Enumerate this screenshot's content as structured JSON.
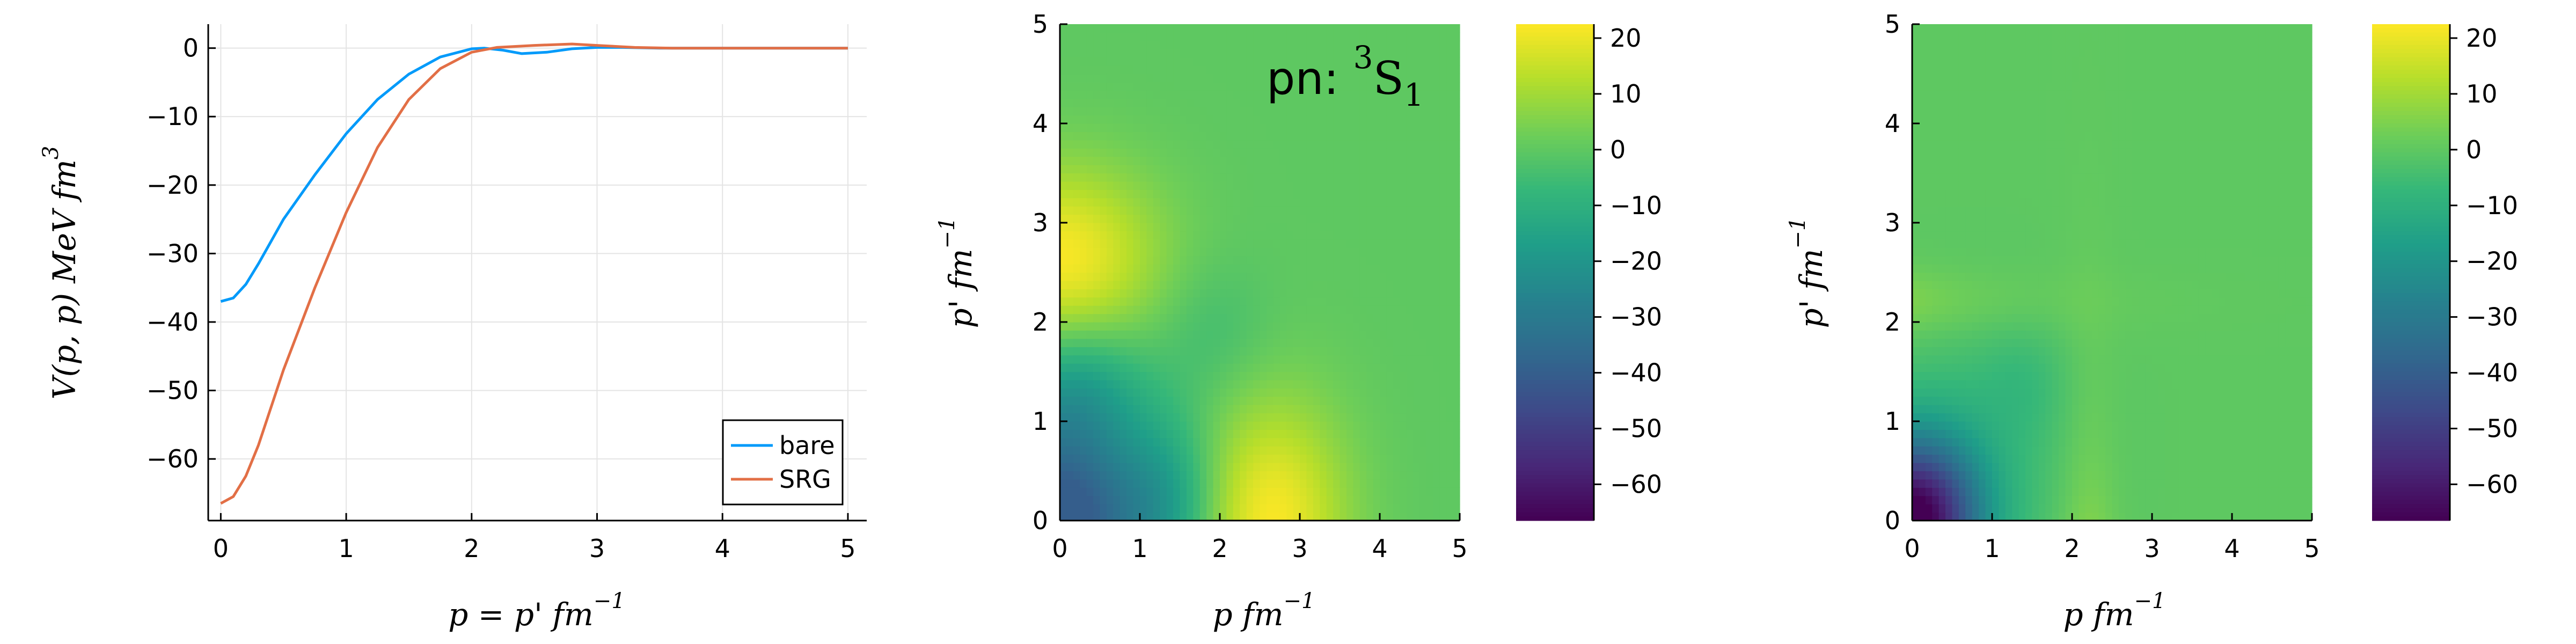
{
  "figure": {
    "annotation": {
      "main": "pn: ",
      "sup": "3",
      "letter": "S",
      "sub": "1"
    }
  },
  "chart_data": [
    {
      "type": "line",
      "xlabel": {
        "main": "p = p' fm",
        "sup": "−1"
      },
      "ylabel": {
        "main": "V(p, p) MeV fm",
        "sup": "3"
      },
      "xlim": [
        -0.1,
        5.15
      ],
      "ylim": [
        -69,
        3.5
      ],
      "xticks": [
        0,
        1,
        2,
        3,
        4,
        5
      ],
      "yticks": [
        0,
        -10,
        -20,
        -30,
        -40,
        -50,
        -60
      ],
      "grid": true,
      "legend": "bottom-right",
      "series": [
        {
          "name": "bare",
          "color": "#009AFA",
          "x": [
            0,
            0.1,
            0.2,
            0.3,
            0.5,
            0.75,
            1.0,
            1.25,
            1.5,
            1.75,
            2.0,
            2.1,
            2.25,
            2.4,
            2.6,
            2.8,
            3.0,
            3.2,
            3.5,
            4.0,
            4.5,
            5.0
          ],
          "y": [
            -37.0,
            -36.5,
            -34.5,
            -31.5,
            -25.0,
            -18.5,
            -12.5,
            -7.5,
            -3.8,
            -1.3,
            -0.1,
            0.0,
            -0.3,
            -0.8,
            -0.6,
            -0.1,
            0.1,
            0.1,
            0.0,
            0.0,
            0.0,
            0.0
          ]
        },
        {
          "name": "SRG",
          "color": "#E26F46",
          "x": [
            0,
            0.1,
            0.2,
            0.3,
            0.5,
            0.75,
            1.0,
            1.25,
            1.5,
            1.75,
            2.0,
            2.2,
            2.5,
            2.8,
            3.0,
            3.3,
            3.6,
            4.0,
            4.5,
            5.0
          ],
          "y": [
            -66.5,
            -65.5,
            -62.5,
            -58.0,
            -47.0,
            -35.0,
            -24.0,
            -14.5,
            -7.5,
            -3.0,
            -0.6,
            0.1,
            0.4,
            0.6,
            0.4,
            0.1,
            0.0,
            0.0,
            0.0,
            0.0
          ]
        }
      ]
    },
    {
      "type": "heatmap",
      "xlabel": {
        "main": "p fm",
        "sup": "−1"
      },
      "ylabel": {
        "main": "p' fm",
        "sup": "−1"
      },
      "xlim": [
        0,
        5
      ],
      "ylim": [
        0,
        5
      ],
      "xticks": [
        0,
        1,
        2,
        3,
        4,
        5
      ],
      "yticks": [
        0,
        1,
        2,
        3,
        4,
        5
      ],
      "colormap": "viridis",
      "clim": [
        -66.5,
        22.5
      ],
      "colorbar_ticks": [
        20,
        10,
        0,
        -10,
        -20,
        -30,
        -40,
        -50,
        -60
      ],
      "values_desc": "bare potential; peaks ~ +22 near (0, 2.6) and (2.6, 0); minimum ~ -37 near (0, 0); ~ 0 elsewhere"
    },
    {
      "type": "heatmap",
      "xlabel": {
        "main": "p fm",
        "sup": "−1"
      },
      "ylabel": {
        "main": "p' fm",
        "sup": "−1"
      },
      "xlim": [
        0,
        5
      ],
      "ylim": [
        0,
        5
      ],
      "xticks": [
        0,
        1,
        2,
        3,
        4,
        5
      ],
      "yticks": [
        0,
        1,
        2,
        3,
        4,
        5
      ],
      "colormap": "viridis",
      "clim": [
        -66.5,
        22.5
      ],
      "colorbar_ticks": [
        20,
        10,
        0,
        -10,
        -20,
        -30,
        -40,
        -50,
        -60
      ],
      "values_desc": "SRG-evolved potential; minimum ~ -66 near (0, 0); weak ridges ~ +6 near p, p' ≈ 2.2; ~ 0 elsewhere"
    }
  ]
}
